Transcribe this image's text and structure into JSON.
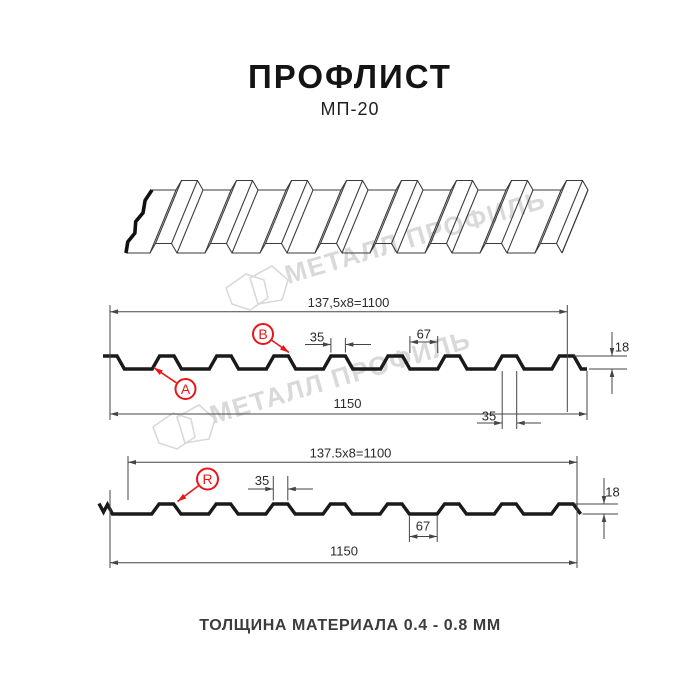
{
  "page": {
    "title": "ПРОФЛИСТ",
    "subtitle": "МП-20",
    "footer": "ТОЛЩИНА МАТЕРИАЛА 0.4 - 0.8 ММ"
  },
  "watermark": {
    "text": "МЕТАЛЛ ПРОФИЛЬ"
  },
  "colors": {
    "accent_red": "#e81717",
    "profile_line": "#1a1a1a",
    "dim_line": "#454545",
    "dim_text": "#2b2b2b",
    "iso_line": "#3a3a3a",
    "watermark_gray": "#d9d9d9"
  },
  "sections": {
    "ab": {
      "pitch_dim": "137,5x8=1100",
      "overall_width": "1150",
      "rib_top": "35",
      "valley": "67",
      "height": "18",
      "rib_bottom": "35",
      "marker_a": "A",
      "marker_b": "B"
    },
    "r": {
      "pitch_dim": "137.5x8=1100",
      "overall_width": "1150",
      "rib_top": "35",
      "valley": "67",
      "height": "18",
      "marker_r": "R"
    }
  }
}
